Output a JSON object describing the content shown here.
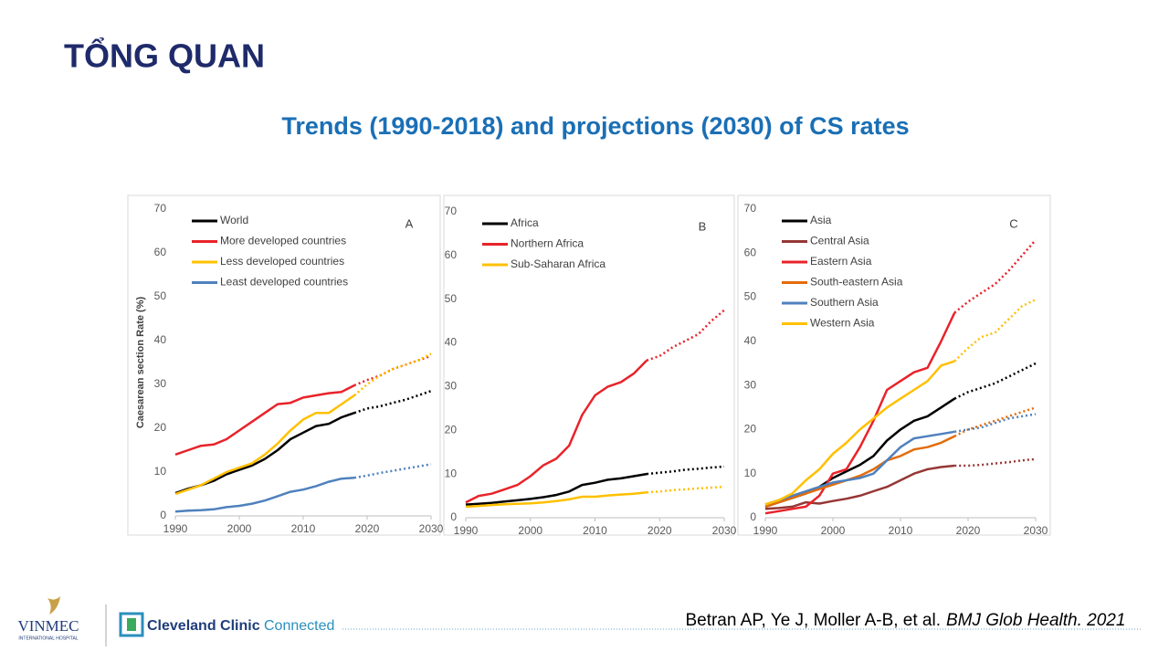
{
  "header": {
    "title": "TỔNG QUAN",
    "subtitle": "Trends (1990-2018) and projections (2030) of CS rates"
  },
  "citation": {
    "authors": "Betran AP, Ye J, Moller A-B, et al.",
    "journal": "BMJ Glob Health. 2021"
  },
  "logos": {
    "vinmec": "VINMEC",
    "vinmec_sub": "INTERNATIONAL HOSPITAL",
    "cleveland": "Cleveland Clinic",
    "connected": "Connected"
  },
  "chart_data": [
    {
      "type": "line",
      "panel": "A",
      "y_label": "Caesarean section Rate (%)",
      "x": [
        1990,
        1992,
        1994,
        1996,
        1998,
        2000,
        2002,
        2004,
        2006,
        2008,
        2010,
        2012,
        2014,
        2016,
        2018,
        2020,
        2022,
        2024,
        2026,
        2028,
        2030
      ],
      "xlim": [
        1990,
        2030
      ],
      "xticks": [
        1990,
        2000,
        2010,
        2020,
        2030
      ],
      "ylim": [
        0,
        70
      ],
      "yticks": [
        0,
        10,
        20,
        30,
        40,
        50,
        60,
        70
      ],
      "series": [
        {
          "name": "World",
          "color": "#000000",
          "values": [
            5.2,
            6.2,
            7,
            8,
            9.5,
            10.5,
            11.5,
            13,
            15,
            17.5,
            19,
            20.5,
            21,
            22.5,
            23.5,
            null,
            null,
            null,
            null,
            null,
            null
          ],
          "projection": [
            null,
            null,
            null,
            null,
            null,
            null,
            null,
            null,
            null,
            null,
            null,
            null,
            null,
            null,
            23.5,
            24.5,
            25,
            25.8,
            26.5,
            27.5,
            28.5
          ]
        },
        {
          "name": "More developed countries",
          "color": "#e8232a",
          "values": [
            14,
            15,
            16,
            16.3,
            17.5,
            19.5,
            21.5,
            23.5,
            25.5,
            25.8,
            27,
            27.5,
            28,
            28.3,
            29.8,
            null,
            null,
            null,
            null,
            null,
            null
          ],
          "projection": [
            null,
            null,
            null,
            null,
            null,
            null,
            null,
            null,
            null,
            null,
            null,
            null,
            null,
            null,
            29.8,
            31,
            32,
            33.5,
            34.5,
            35.5,
            36.5
          ]
        },
        {
          "name": "Less developed countries",
          "color": "#ffc000",
          "values": [
            5,
            6,
            7,
            8.5,
            10,
            11,
            12,
            14,
            16.5,
            19.5,
            22,
            23.5,
            23.5,
            25.5,
            27.5,
            null,
            null,
            null,
            null,
            null,
            null
          ],
          "projection": [
            null,
            null,
            null,
            null,
            null,
            null,
            null,
            null,
            null,
            null,
            null,
            null,
            null,
            null,
            27.5,
            30,
            32,
            33.5,
            34.5,
            35.5,
            37
          ]
        },
        {
          "name": "Least developed countries",
          "color": "#4f81bd",
          "values": [
            1,
            1.2,
            1.3,
            1.5,
            2,
            2.3,
            2.8,
            3.5,
            4.5,
            5.5,
            6,
            6.8,
            7.8,
            8.5,
            8.7,
            null,
            null,
            null,
            null,
            null,
            null
          ],
          "projection": [
            null,
            null,
            null,
            null,
            null,
            null,
            null,
            null,
            null,
            null,
            null,
            null,
            null,
            null,
            8.7,
            9.2,
            9.8,
            10.3,
            10.8,
            11.3,
            11.8
          ]
        }
      ]
    },
    {
      "type": "line",
      "panel": "B",
      "x": [
        1990,
        1992,
        1994,
        1996,
        1998,
        2000,
        2002,
        2004,
        2006,
        2008,
        2010,
        2012,
        2014,
        2016,
        2018,
        2020,
        2022,
        2024,
        2026,
        2028,
        2030
      ],
      "xlim": [
        1990,
        2030
      ],
      "xticks": [
        1990,
        2000,
        2010,
        2020,
        2030
      ],
      "ylim": [
        0,
        70
      ],
      "yticks": [
        0,
        10,
        20,
        30,
        40,
        50,
        60,
        70
      ],
      "series": [
        {
          "name": "Africa",
          "color": "#000000",
          "values": [
            3,
            3.2,
            3.4,
            3.7,
            4,
            4.3,
            4.7,
            5.2,
            6,
            7.5,
            8,
            8.7,
            9,
            9.5,
            10,
            null,
            null,
            null,
            null,
            null,
            null
          ],
          "projection": [
            null,
            null,
            null,
            null,
            null,
            null,
            null,
            null,
            null,
            null,
            null,
            null,
            null,
            null,
            10,
            10.3,
            10.6,
            11,
            11.2,
            11.5,
            11.7
          ]
        },
        {
          "name": "Northern Africa",
          "color": "#e8232a",
          "values": [
            3.5,
            5,
            5.5,
            6.5,
            7.5,
            9.5,
            12,
            13.5,
            16.5,
            23.5,
            28,
            30,
            31,
            33,
            36,
            null,
            null,
            null,
            null,
            null,
            null
          ],
          "projection": [
            null,
            null,
            null,
            null,
            null,
            null,
            null,
            null,
            null,
            null,
            null,
            null,
            null,
            null,
            36,
            37,
            39,
            40.5,
            42,
            45,
            47.5
          ]
        },
        {
          "name": "Sub-Saharan Africa",
          "color": "#ffc000",
          "values": [
            2.5,
            2.7,
            2.9,
            3.1,
            3.2,
            3.3,
            3.5,
            3.8,
            4.2,
            4.8,
            4.8,
            5.1,
            5.3,
            5.5,
            5.8,
            null,
            null,
            null,
            null,
            null,
            null
          ],
          "projection": [
            null,
            null,
            null,
            null,
            null,
            null,
            null,
            null,
            null,
            null,
            null,
            null,
            null,
            null,
            5.8,
            6,
            6.3,
            6.5,
            6.7,
            6.9,
            7.1
          ]
        }
      ]
    },
    {
      "type": "line",
      "panel": "C",
      "x": [
        1990,
        1992,
        1994,
        1996,
        1998,
        2000,
        2002,
        2004,
        2006,
        2008,
        2010,
        2012,
        2014,
        2016,
        2018,
        2020,
        2022,
        2024,
        2026,
        2028,
        2030
      ],
      "xlim": [
        1990,
        2030
      ],
      "xticks": [
        1990,
        2000,
        2010,
        2020,
        2030
      ],
      "ylim": [
        0,
        70
      ],
      "yticks": [
        0,
        10,
        20,
        30,
        40,
        50,
        60,
        70
      ],
      "series": [
        {
          "name": "Asia",
          "color": "#000000",
          "values": [
            2.5,
            3.5,
            4.5,
            5.5,
            7,
            9,
            10.5,
            12,
            14,
            17.5,
            20,
            22,
            23,
            25,
            27,
            null,
            null,
            null,
            null,
            null,
            null
          ],
          "projection": [
            null,
            null,
            null,
            null,
            null,
            null,
            null,
            null,
            null,
            null,
            null,
            null,
            null,
            null,
            27,
            28.5,
            29.5,
            30.5,
            32,
            33.5,
            35
          ]
        },
        {
          "name": "Central Asia",
          "color": "#953735",
          "values": [
            2,
            2.2,
            2.5,
            3.5,
            3.2,
            3.8,
            4.3,
            5,
            6,
            7,
            8.5,
            10,
            11,
            11.5,
            11.8,
            null,
            null,
            null,
            null,
            null,
            null
          ],
          "projection": [
            null,
            null,
            null,
            null,
            null,
            null,
            null,
            null,
            null,
            null,
            null,
            null,
            null,
            null,
            11.8,
            11.8,
            12,
            12.3,
            12.6,
            13,
            13.3
          ]
        },
        {
          "name": "Eastern Asia",
          "color": "#e8232a",
          "values": [
            1,
            1.5,
            2,
            2.5,
            5,
            10,
            11,
            16,
            22,
            29,
            31,
            33,
            34,
            40,
            46.5,
            null,
            null,
            null,
            null,
            null,
            null
          ],
          "projection": [
            null,
            null,
            null,
            null,
            null,
            null,
            null,
            null,
            null,
            null,
            null,
            null,
            null,
            null,
            46.5,
            49,
            51,
            53,
            56,
            59.5,
            63
          ]
        },
        {
          "name": "South-eastern Asia",
          "color": "#e36c09",
          "values": [
            2.5,
            3.5,
            4.5,
            5.5,
            6.5,
            7.5,
            8.5,
            9.5,
            11,
            13,
            14,
            15.5,
            16,
            17,
            18.5,
            null,
            null,
            null,
            null,
            null,
            null
          ],
          "projection": [
            null,
            null,
            null,
            null,
            null,
            null,
            null,
            null,
            null,
            null,
            null,
            null,
            null,
            null,
            18.5,
            20,
            21,
            22,
            23,
            24,
            25
          ]
        },
        {
          "name": "Southern Asia",
          "color": "#4f81bd",
          "values": [
            3,
            4,
            5,
            6,
            7,
            8,
            8.5,
            9,
            10,
            13,
            16,
            18,
            18.5,
            19,
            19.5,
            null,
            null,
            null,
            null,
            null,
            null
          ],
          "projection": [
            null,
            null,
            null,
            null,
            null,
            null,
            null,
            null,
            null,
            null,
            null,
            null,
            null,
            null,
            19.5,
            20,
            20.5,
            21.5,
            22.5,
            23,
            23.5
          ]
        },
        {
          "name": "Western Asia",
          "color": "#ffc000",
          "values": [
            3,
            4,
            5.5,
            8.5,
            11,
            14.5,
            17,
            20,
            22.5,
            25,
            27,
            29,
            31,
            34.5,
            35.5,
            null,
            null,
            null,
            null,
            null,
            null
          ],
          "projection": [
            null,
            null,
            null,
            null,
            null,
            null,
            null,
            null,
            null,
            null,
            null,
            null,
            null,
            null,
            35.5,
            38.5,
            41,
            42,
            45,
            48,
            49.5
          ]
        }
      ]
    }
  ]
}
